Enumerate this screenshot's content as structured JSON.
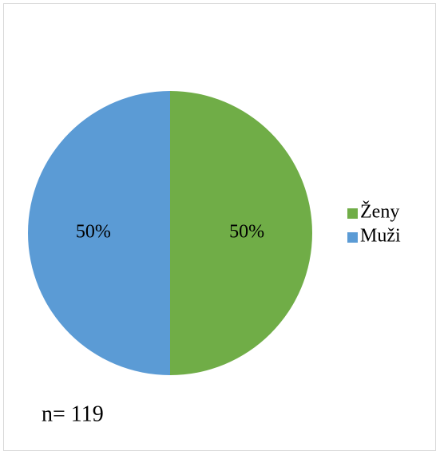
{
  "chart_data": {
    "type": "pie",
    "categories": [
      "Ženy",
      "Muži"
    ],
    "values": [
      50,
      50
    ],
    "value_labels": [
      "50%",
      "50%"
    ],
    "colors": [
      "#70ad47",
      "#5b9bd5"
    ],
    "legend": "right",
    "annotation": "n= 119"
  }
}
